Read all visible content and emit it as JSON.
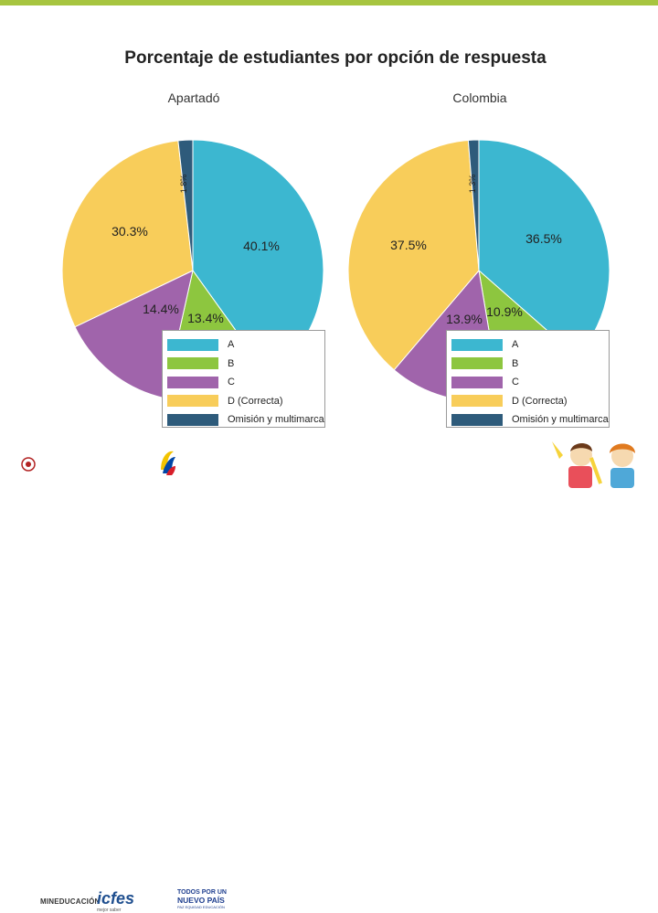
{
  "colors": {
    "top_bar": "#a7c540",
    "A": "#3cb7d0",
    "B": "#8dc63f",
    "C": "#a064ab",
    "D": "#f8cd5a",
    "Omision": "#2e5b7b"
  },
  "chart_data": {
    "type": "pie",
    "title": "Porcentaje de estudiantes por opción de respuesta",
    "legend": [
      "A",
      "B",
      "C",
      "D (Correcta)",
      "Omisión y multimarca"
    ],
    "legend_position": "bottom-right",
    "charts": [
      {
        "name": "Apartadó",
        "slices": [
          {
            "key": "A",
            "value": 40.1,
            "label": "40.1%"
          },
          {
            "key": "B",
            "value": 13.4,
            "label": "13.4%"
          },
          {
            "key": "C",
            "value": 14.4,
            "label": "14.4%"
          },
          {
            "key": "D",
            "value": 30.3,
            "label": "30.3%"
          },
          {
            "key": "Omision",
            "value": 1.8,
            "label": "1.8%"
          }
        ]
      },
      {
        "name": "Colombia",
        "slices": [
          {
            "key": "A",
            "value": 36.5,
            "label": "36.5%"
          },
          {
            "key": "B",
            "value": 10.9,
            "label": "10.9%"
          },
          {
            "key": "C",
            "value": 13.9,
            "label": "13.9%"
          },
          {
            "key": "D",
            "value": 37.5,
            "label": "37.5%"
          },
          {
            "key": "Omision",
            "value": 1.3,
            "label": "1.3%"
          }
        ]
      }
    ]
  },
  "footer": {
    "logo_mineducacion": "MINEDUCACIÓN",
    "logo_icfes": "icfes",
    "logo_icfes_sub": "mejor saber",
    "logo_tpnp_line1": "TODOS POR UN",
    "logo_tpnp_line2": "NUEVO PAÍS",
    "logo_tpnp_line3": "PAZ EQUIDAD EDUCACIÓN"
  }
}
